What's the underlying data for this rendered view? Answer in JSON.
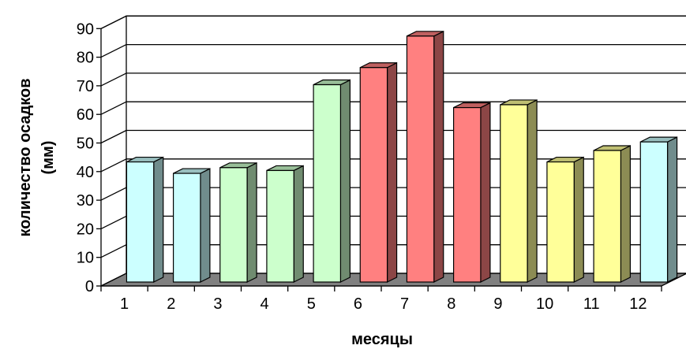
{
  "chart_data": {
    "type": "bar",
    "categories": [
      "1",
      "2",
      "3",
      "4",
      "5",
      "6",
      "7",
      "8",
      "9",
      "10",
      "11",
      "12"
    ],
    "values": [
      42,
      38,
      40,
      39,
      69,
      75,
      86,
      61,
      62,
      42,
      46,
      49
    ],
    "xlabel": "месяцы",
    "ylabel_line1": "количество осадков",
    "ylabel_line2": "(мм)",
    "ylim": [
      0,
      90
    ],
    "yticks": [
      0,
      10,
      20,
      30,
      40,
      50,
      60,
      70,
      80,
      90
    ],
    "grid": true,
    "three_d": true,
    "bar_colors": [
      "#ccffff",
      "#ccffff",
      "#ccffcc",
      "#ccffcc",
      "#ccffcc",
      "#ff8080",
      "#ff8080",
      "#ff8080",
      "#ffff99",
      "#ffff99",
      "#ffff99",
      "#ccffff"
    ],
    "floor_color": "#808080"
  }
}
